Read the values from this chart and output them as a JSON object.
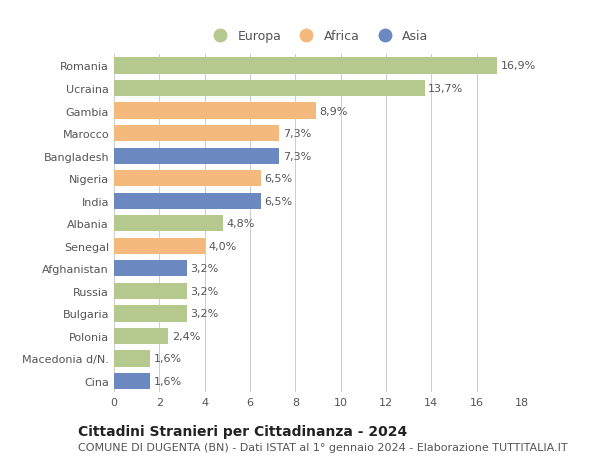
{
  "categories": [
    "Romania",
    "Ucraina",
    "Gambia",
    "Marocco",
    "Bangladesh",
    "Nigeria",
    "India",
    "Albania",
    "Senegal",
    "Afghanistan",
    "Russia",
    "Bulgaria",
    "Polonia",
    "Macedonia d/N.",
    "Cina"
  ],
  "values": [
    16.9,
    13.7,
    8.9,
    7.3,
    7.3,
    6.5,
    6.5,
    4.8,
    4.0,
    3.2,
    3.2,
    3.2,
    2.4,
    1.6,
    1.6
  ],
  "labels": [
    "16,9%",
    "13,7%",
    "8,9%",
    "7,3%",
    "7,3%",
    "6,5%",
    "6,5%",
    "4,8%",
    "4,0%",
    "3,2%",
    "3,2%",
    "3,2%",
    "2,4%",
    "1,6%",
    "1,6%"
  ],
  "continents": [
    "Europa",
    "Europa",
    "Africa",
    "Africa",
    "Asia",
    "Africa",
    "Asia",
    "Europa",
    "Africa",
    "Asia",
    "Europa",
    "Europa",
    "Europa",
    "Europa",
    "Asia"
  ],
  "colors": {
    "Europa": "#b5c98e",
    "Africa": "#f4b97c",
    "Asia": "#6b88c0"
  },
  "legend_labels": [
    "Europa",
    "Africa",
    "Asia"
  ],
  "xlim": [
    0,
    18
  ],
  "xticks": [
    0,
    2,
    4,
    6,
    8,
    10,
    12,
    14,
    16,
    18
  ],
  "title": "Cittadini Stranieri per Cittadinanza - 2024",
  "subtitle": "COMUNE DI DUGENTA (BN) - Dati ISTAT al 1° gennaio 2024 - Elaborazione TUTTITALIA.IT",
  "title_fontsize": 10,
  "subtitle_fontsize": 8,
  "label_fontsize": 8,
  "tick_fontsize": 8,
  "legend_fontsize": 9,
  "bar_height": 0.72,
  "background_color": "#ffffff",
  "grid_color": "#cccccc"
}
